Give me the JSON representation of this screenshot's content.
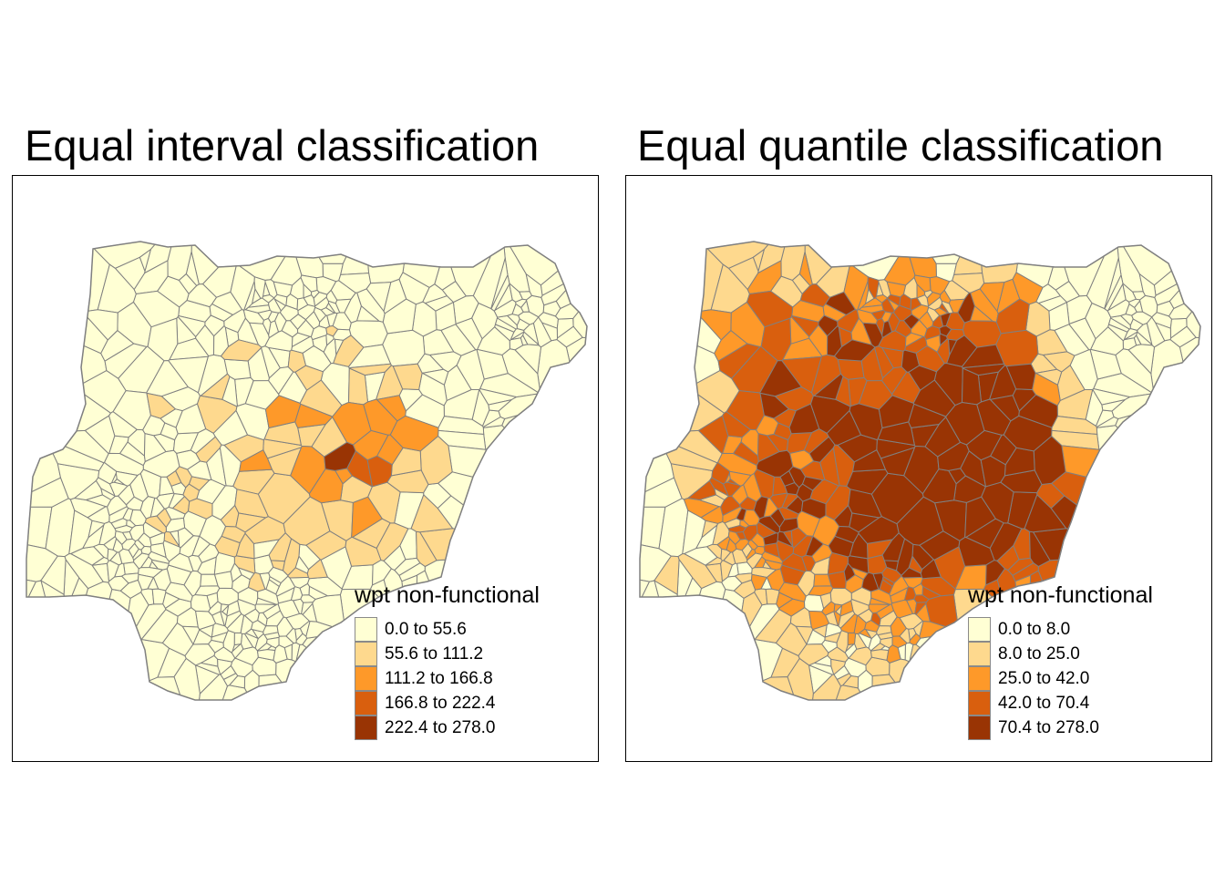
{
  "maps": [
    {
      "title": "Equal interval classification",
      "legend": {
        "title": "wpt non-functional",
        "items": [
          {
            "label": "0.0 to 55.6",
            "color": "#ffffd4"
          },
          {
            "label": "55.6 to 111.2",
            "color": "#fed98e"
          },
          {
            "label": "111.2 to 166.8",
            "color": "#fe9929"
          },
          {
            "label": "166.8 to 222.4",
            "color": "#d95f0e"
          },
          {
            "label": "222.4 to 278.0",
            "color": "#993404"
          }
        ]
      },
      "class_mix": [
        0.86,
        0.11,
        0.025,
        0.004,
        0.001
      ]
    },
    {
      "title": "Equal quantile classification",
      "legend": {
        "title": "wpt non-functional",
        "items": [
          {
            "label": "0.0 to 8.0",
            "color": "#ffffd4"
          },
          {
            "label": "8.0 to 25.0",
            "color": "#fed98e"
          },
          {
            "label": "25.0 to 42.0",
            "color": "#fe9929"
          },
          {
            "label": "42.0 to 70.4",
            "color": "#d95f0e"
          },
          {
            "label": "70.4 to 278.0",
            "color": "#993404"
          }
        ]
      },
      "class_mix": [
        0.2,
        0.2,
        0.2,
        0.2,
        0.2
      ]
    }
  ],
  "border_color": "#808080"
}
